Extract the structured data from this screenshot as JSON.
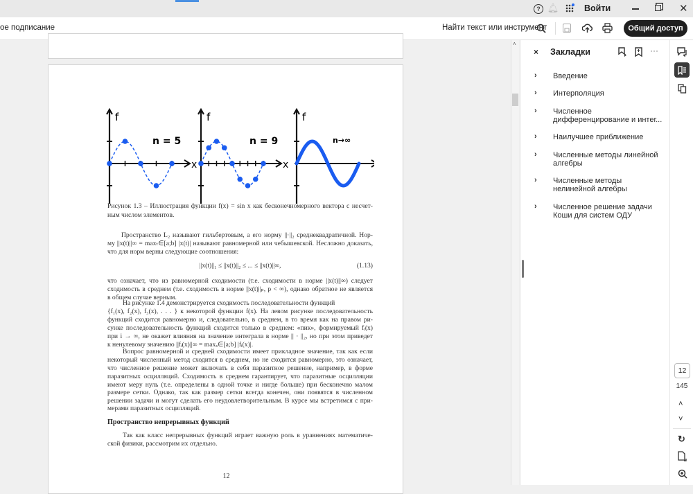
{
  "titlebar": {
    "signin": "Войти",
    "icons": [
      "help-icon",
      "bell-icon",
      "apps-icon",
      "minimize-icon",
      "maximize-icon",
      "close-icon"
    ]
  },
  "toolbar": {
    "left_label": "ое подписание",
    "search_label": "Найти текст или инструмент",
    "share_label": "Общий доступ"
  },
  "panel": {
    "title": "Закладки",
    "bookmarks": [
      {
        "label": "Введение"
      },
      {
        "label": "Интерполяция"
      },
      {
        "label": "Численное дифференцирование и интег..."
      },
      {
        "label": "Наилучшее приближение"
      },
      {
        "label": "Численные методы линейной алгебры"
      },
      {
        "label": "Численные методы нелинейной алгебры"
      },
      {
        "label": "Численное решение задачи Коши для систем ОДУ"
      }
    ]
  },
  "pagenav": {
    "current": "12",
    "total": "145"
  },
  "figure": {
    "labels": [
      "n = 5",
      "n = 9",
      "n→∞"
    ],
    "axis_y": "f",
    "axis_x": "x",
    "color": "#1a5cf0"
  },
  "document": {
    "lines": [
      "Рисунок 1.3 – Иллюстрация функции f(x) = sin x как бесконечномерного вектора с несчет-",
      "ным числом элементов.",
      "Пространство L₂ называют гильбертовым, а его норму ||·||₂ среднеквадратичной. Нор-",
      "му ||x(t)||∞ = maxₜ∈[a;b] |x(t)| называют равномерной или чебышевской. Несложно доказать,",
      "что для норм верны следующие соотношения:",
      "||x(t)||₁ ≤ ||x(t)||₂ ≤ ... ≤ ||x(t)||∞,",
      "(1.13)",
      "что означает, что из равномерной сходимости (т.е. сходимости в норме ||x(t)||∞) следует",
      "сходимость в среднем (т.е. сходимость в норме ||x(t)||ₚ, p < ∞), однако обратное не является",
      "в общем случае верным.",
      "На рисунке 1.4 демонстрируется сходимость последовательности функций",
      "{f₁(x), f₂(x), f₃(x), . . . } к некоторой функции f(x). На левом рисунке последовательность",
      "функций сходится равномерно и, следовательно, в среднем, в то время как на правом ри-",
      "сунке последовательность функций сходится только в среднем: «пик», формируемый fᵢ(x)",
      "при i → ∞, не окажет влияния на значение интеграла в норме || · ||₂, но при этом приведет",
      "к ненулевому значению ||fᵢ(x)||∞ = maxₓ∈[a;b] |fᵢ(x)|.",
      "Вопрос равномерной и средней сходимости имеет прикладное значение, так как если",
      "некоторый численный метод сходится в среднем, но не сходится равномерно, это означает,",
      "что численное решение может включать в себя паразитное решение, например, в форме",
      "паразитных осцилляций. Сходимость в среднем гарантирует, что паразитные осцилляции",
      "имеют меру нуль (т.е. определены в одной точке и нигде больше) при бесконечно малом",
      "размере сетки. Однако, так как размер сетки всегда конечен, они появятся в численном",
      "решении задачи и могут сделать его неудовлетворительным. В курсе мы встретимся с при-",
      "мерами паразитных осцилляций.",
      "Пространство непрерывных функций",
      "Так как класс непрерывных функций играет важную роль в уравнениях математиче-",
      "ской физики, рассмотрим их отдельно."
    ],
    "page_number": "12"
  }
}
